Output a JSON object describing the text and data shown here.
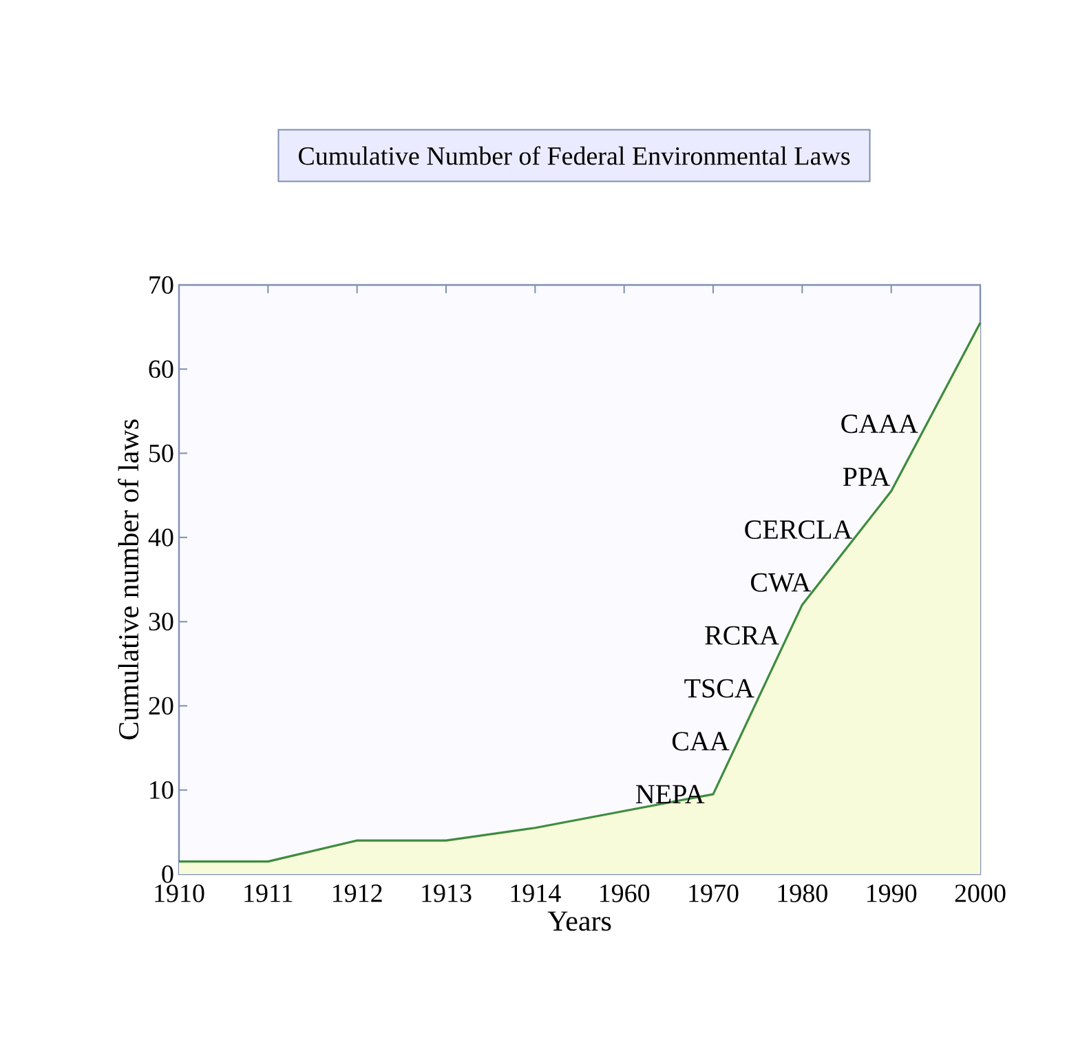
{
  "chart_data": {
    "type": "area",
    "title": "Cumulative Number of Federal Environmental Laws",
    "xlabel": "Years",
    "ylabel": "Cumulative number of laws",
    "categories": [
      "1910",
      "1911",
      "1912",
      "1913",
      "1914",
      "1960",
      "1970",
      "1980",
      "1990",
      "2000"
    ],
    "series": [
      {
        "color": "#3d8c3d",
        "values": [
          1.5,
          1.5,
          4,
          4,
          5.5,
          7.5,
          9.5,
          32,
          45.5,
          65.5
        ]
      }
    ],
    "ylim": [
      0,
      70
    ],
    "yticks": [
      0,
      10,
      20,
      30,
      40,
      50,
      60,
      70
    ],
    "grid": false,
    "annotations": [
      "NEPA",
      "CAA",
      "TSCA",
      "RCRA",
      "CWA",
      "CERCLA",
      "PPA",
      "CAAA"
    ]
  }
}
